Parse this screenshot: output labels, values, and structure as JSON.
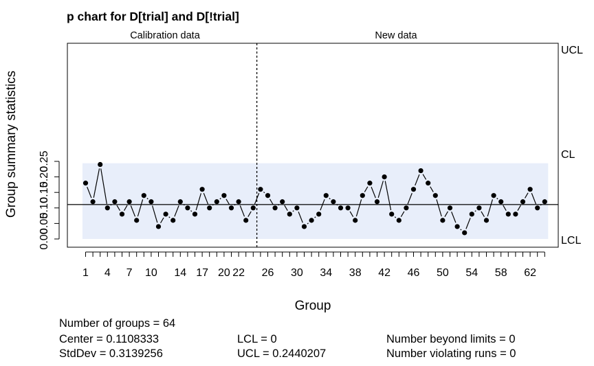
{
  "chart_data": {
    "type": "line",
    "title": "p chart for D[trial] and D[!trial]",
    "xlabel": "Group",
    "ylabel": "Group summary statistics",
    "xlim": [
      0.5,
      64.5
    ],
    "ylim": [
      0,
      0.25
    ],
    "x_ticks": [
      1,
      4,
      7,
      10,
      14,
      17,
      20,
      22,
      26,
      30,
      34,
      38,
      42,
      46,
      50,
      54,
      58,
      62
    ],
    "y_ticks": [
      "0.00",
      "0.05",
      "0.10",
      "0.15",
      "0.20",
      "0.25"
    ],
    "y_tick_values": [
      0,
      0.05,
      0.1,
      0.15,
      0.2,
      0.25
    ],
    "split_after_group": 24,
    "sections": [
      {
        "label": "Calibration data"
      },
      {
        "label": "New data"
      }
    ],
    "center_line": 0.1108333,
    "ucl": 0.2440207,
    "lcl": 0,
    "control_labels": {
      "ucl": "UCL",
      "cl": "CL",
      "lcl": "LCL"
    },
    "series": [
      {
        "values": [
          0.18,
          0.12,
          0.24,
          0.1,
          0.12,
          0.08,
          0.12,
          0.06,
          0.14,
          0.12,
          0.04,
          0.08,
          0.06,
          0.12,
          0.1,
          0.08,
          0.16,
          0.1,
          0.12,
          0.14,
          0.1,
          0.12,
          0.06,
          0.1,
          0.16,
          0.14,
          0.1,
          0.12,
          0.08,
          0.1,
          0.04,
          0.06,
          0.08,
          0.14,
          0.12,
          0.1,
          0.1,
          0.06,
          0.14,
          0.18,
          0.12,
          0.2,
          0.08,
          0.06,
          0.1,
          0.16,
          0.22,
          0.18,
          0.14,
          0.06,
          0.1,
          0.04,
          0.02,
          0.08,
          0.1,
          0.06,
          0.14,
          0.12,
          0.08,
          0.08,
          0.12,
          0.16,
          0.1,
          0.12
        ]
      }
    ],
    "colors": {
      "region": "#e8eefa",
      "line": "#000000",
      "axis": "#000000",
      "label": "#444444"
    }
  },
  "stats": {
    "groups": "Number of groups = 64",
    "center": "Center = 0.1108333",
    "stddev": "StdDev = 0.3139256",
    "lcl": "LCL = 0",
    "ucl": "UCL = 0.2440207",
    "beyond": "Number beyond limits = 0",
    "runs": "Number violating runs = 0"
  }
}
